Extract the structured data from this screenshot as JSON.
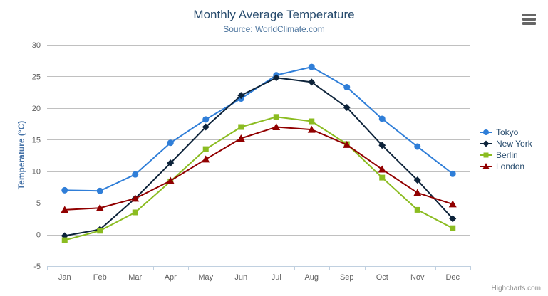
{
  "chart_data": {
    "type": "line",
    "title": "Monthly Average Temperature",
    "subtitle": "Source: WorldClimate.com",
    "xlabel": "",
    "ylabel": "Temperature (°C)",
    "ylim": [
      -5,
      30
    ],
    "yticks": [
      -5,
      0,
      5,
      10,
      15,
      20,
      25,
      30
    ],
    "grid": true,
    "legend_position": "right",
    "categories": [
      "Jan",
      "Feb",
      "Mar",
      "Apr",
      "May",
      "Jun",
      "Jul",
      "Aug",
      "Sep",
      "Oct",
      "Nov",
      "Dec"
    ],
    "series": [
      {
        "name": "Tokyo",
        "color": "#2f7ed8",
        "marker": "circle",
        "values": [
          7.0,
          6.9,
          9.5,
          14.5,
          18.2,
          21.5,
          25.2,
          26.5,
          23.3,
          18.3,
          13.9,
          9.6
        ]
      },
      {
        "name": "New York",
        "color": "#0d233a",
        "marker": "diamond",
        "values": [
          -0.2,
          0.8,
          5.7,
          11.3,
          17.0,
          22.0,
          24.8,
          24.1,
          20.1,
          14.1,
          8.6,
          2.5
        ]
      },
      {
        "name": "Berlin",
        "color": "#8bbc21",
        "marker": "square",
        "values": [
          -0.9,
          0.6,
          3.5,
          8.4,
          13.5,
          17.0,
          18.6,
          17.9,
          14.3,
          9.0,
          3.9,
          1.0
        ]
      },
      {
        "name": "London",
        "color": "#910000",
        "marker": "triangle",
        "values": [
          3.9,
          4.2,
          5.7,
          8.5,
          11.9,
          15.2,
          17.0,
          16.6,
          14.2,
          10.3,
          6.6,
          4.8
        ]
      }
    ],
    "colors": {
      "gridline": "#C0C0C0",
      "axis_line": "#C0D0E0",
      "tick_label": "#606060"
    }
  },
  "icons": {
    "menu": "hamburger-menu-icon"
  },
  "footer": {
    "credits": "Highcharts.com"
  }
}
